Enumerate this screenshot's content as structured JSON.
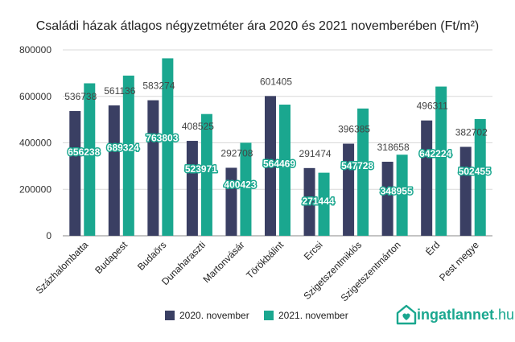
{
  "chart_data": {
    "type": "bar",
    "title": "Családi házak átlagos négyzetméter ára 2020 és 2021 novemberében (Ft/m²)",
    "categories": [
      "Százhalombatta",
      "Budapest",
      "Budaörs",
      "Dunaharaszti",
      "Martonvásár",
      "Törökbálint",
      "Ercsi",
      "Szigetszentmiklós",
      "Szigetszentmárton",
      "Érd",
      "Pest megye"
    ],
    "series": [
      {
        "name": "2020. november",
        "color": "#3a3f63",
        "values": [
          536738,
          561136,
          583274,
          408525,
          292708,
          601405,
          291474,
          396385,
          318658,
          496311,
          382702
        ]
      },
      {
        "name": "2021. november",
        "color": "#1aa78f",
        "values": [
          656238,
          689324,
          763803,
          523971,
          400423,
          564469,
          271444,
          547728,
          348955,
          642224,
          502455
        ]
      }
    ],
    "ylim": [
      0,
      800000
    ],
    "yticks": [
      0,
      200000,
      400000,
      600000,
      800000
    ],
    "grid": true,
    "legend_position": "bottom"
  },
  "brand": {
    "name": "ingatlannet",
    "tld": ".hu",
    "color": "#1aa78f",
    "icon": "house-heart-icon"
  }
}
